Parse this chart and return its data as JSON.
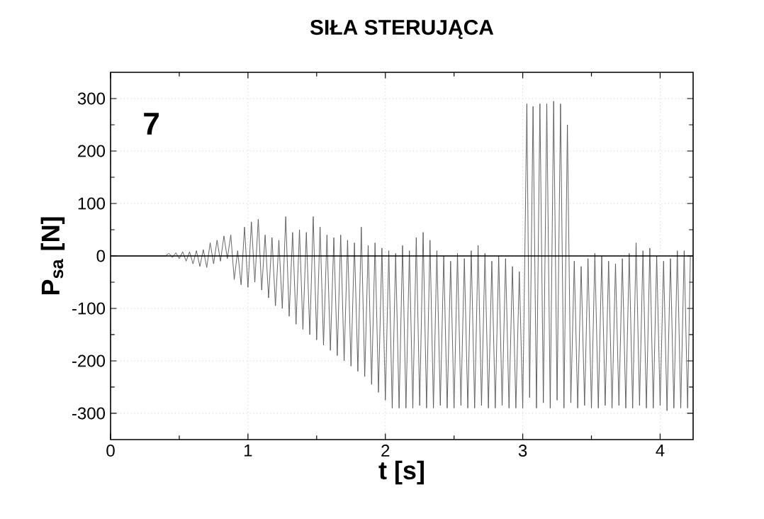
{
  "chart_data": {
    "type": "line",
    "title": "SIŁA STERUJĄCA",
    "xlabel": "t [s]",
    "ylabel": "P$_{sa}$ [N]",
    "annotations": [
      "7"
    ],
    "xlim": [
      0,
      4.24
    ],
    "ylim": [
      -350,
      350
    ],
    "xticks": [
      0,
      1,
      2,
      3,
      4
    ],
    "yticks": [
      -300,
      -200,
      -100,
      0,
      100,
      200,
      300
    ],
    "grid": true,
    "ref_lines": [
      {
        "axis": "y",
        "value": 0,
        "color": "#000000"
      }
    ],
    "series": [
      {
        "color": "#555555",
        "line_style": "solid",
        "x": [
          0,
          0.4,
          0.425,
          0.45,
          0.475,
          0.5,
          0.525,
          0.55,
          0.575,
          0.6,
          0.625,
          0.65,
          0.675,
          0.7,
          0.725,
          0.75,
          0.775,
          0.8,
          0.825,
          0.85,
          0.875,
          0.9,
          0.925,
          0.95,
          0.975,
          1.0,
          1.025,
          1.05,
          1.075,
          1.1,
          1.125,
          1.15,
          1.175,
          1.2,
          1.225,
          1.25,
          1.275,
          1.3,
          1.325,
          1.35,
          1.375,
          1.4,
          1.425,
          1.45,
          1.475,
          1.5,
          1.525,
          1.55,
          1.575,
          1.6,
          1.625,
          1.65,
          1.675,
          1.7,
          1.725,
          1.75,
          1.775,
          1.8,
          1.825,
          1.85,
          1.875,
          1.9,
          1.925,
          1.95,
          1.975,
          2.0,
          2.025,
          2.05,
          2.075,
          2.1,
          2.125,
          2.15,
          2.175,
          2.2,
          2.225,
          2.25,
          2.275,
          2.3,
          2.325,
          2.35,
          2.375,
          2.4,
          2.425,
          2.45,
          2.475,
          2.5,
          2.525,
          2.55,
          2.575,
          2.6,
          2.625,
          2.65,
          2.675,
          2.7,
          2.725,
          2.75,
          2.775,
          2.8,
          2.825,
          2.85,
          2.875,
          2.9,
          2.925,
          2.95,
          2.975,
          3.0,
          3.03,
          3.05,
          3.075,
          3.1,
          3.125,
          3.15,
          3.175,
          3.2,
          3.225,
          3.25,
          3.275,
          3.3,
          3.325,
          3.35,
          3.375,
          3.4,
          3.425,
          3.45,
          3.475,
          3.5,
          3.525,
          3.55,
          3.575,
          3.6,
          3.625,
          3.65,
          3.675,
          3.7,
          3.725,
          3.75,
          3.775,
          3.8,
          3.825,
          3.85,
          3.875,
          3.9,
          3.925,
          3.95,
          3.975,
          4.0,
          4.025,
          4.05,
          4.075,
          4.1,
          4.125,
          4.15,
          4.175,
          4.2,
          4.22
        ],
        "values": [
          0,
          0,
          5,
          -3,
          6,
          -5,
          8,
          -10,
          8,
          -15,
          10,
          -20,
          12,
          -22,
          25,
          -15,
          30,
          -10,
          38,
          -5,
          40,
          -45,
          10,
          -55,
          55,
          -60,
          65,
          -50,
          70,
          -65,
          40,
          -80,
          35,
          -95,
          30,
          -100,
          75,
          -115,
          45,
          -130,
          50,
          -140,
          45,
          -150,
          75,
          -160,
          55,
          -170,
          40,
          -180,
          35,
          -190,
          40,
          -200,
          30,
          -210,
          25,
          -220,
          55,
          -230,
          20,
          -245,
          25,
          -260,
          15,
          -275,
          10,
          -290,
          5,
          -290,
          20,
          -290,
          10,
          -290,
          35,
          -285,
          45,
          -290,
          30,
          -290,
          10,
          -285,
          0,
          -290,
          -10,
          -290,
          5,
          -285,
          -5,
          -290,
          10,
          -290,
          20,
          -285,
          5,
          -290,
          -10,
          -290,
          0,
          -285,
          -5,
          -290,
          -20,
          -290,
          -30,
          -290,
          290,
          -270,
          285,
          -290,
          290,
          -280,
          290,
          -290,
          295,
          -275,
          290,
          -290,
          250,
          -280,
          -10,
          -290,
          -20,
          -285,
          -5,
          -290,
          5,
          -290,
          0,
          -285,
          -10,
          -290,
          -15,
          -285,
          -5,
          -290,
          5,
          -290,
          25,
          -285,
          10,
          -290,
          15,
          -290,
          0,
          -285,
          -10,
          -295,
          -5,
          -290,
          10,
          -290,
          10,
          -290,
          0
        ]
      }
    ]
  }
}
